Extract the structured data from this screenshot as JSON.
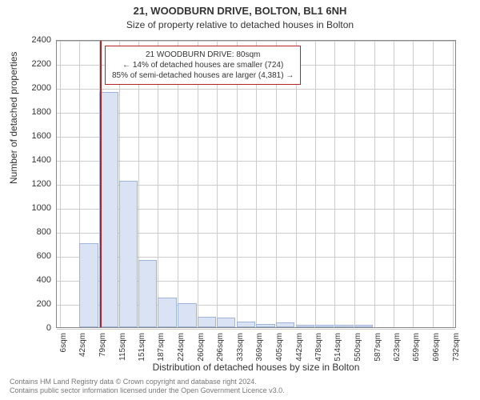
{
  "title": "21, WOODBURN DRIVE, BOLTON, BL1 6NH",
  "subtitle": "Size of property relative to detached houses in Bolton",
  "ylabel": "Number of detached properties",
  "xlabel": "Distribution of detached houses by size in Bolton",
  "footer_line1": "Contains HM Land Registry data © Crown copyright and database right 2024.",
  "footer_line2": "Contains public sector information licensed under the Open Government Licence v3.0.",
  "annotation": {
    "line1": "21 WOODBURN DRIVE: 80sqm",
    "line2": "← 14% of detached houses are smaller (724)",
    "line3": "85% of semi-detached houses are larger (4,381) →"
  },
  "chart": {
    "type": "histogram",
    "bar_fill": "#d9e3f3",
    "bar_stroke": "#9fb4d8",
    "grid_color": "#cccccc",
    "axis_color": "#888888",
    "highlight_color": "#b22222",
    "background": "#ffffff",
    "title_fontsize": 13,
    "label_fontsize": 12,
    "tick_fontsize": 11,
    "ylim": [
      0,
      2400
    ],
    "ytick_step": 200,
    "x_range": [
      0,
      740
    ],
    "x_ticks": [
      6,
      42,
      79,
      115,
      151,
      187,
      224,
      260,
      296,
      333,
      369,
      405,
      442,
      478,
      514,
      550,
      587,
      623,
      659,
      696,
      732
    ],
    "bin_width": 36,
    "highlight_x": 80,
    "bars": [
      {
        "x": 6,
        "y": 0
      },
      {
        "x": 42,
        "y": 700
      },
      {
        "x": 79,
        "y": 1960
      },
      {
        "x": 115,
        "y": 1220
      },
      {
        "x": 151,
        "y": 560
      },
      {
        "x": 187,
        "y": 250
      },
      {
        "x": 224,
        "y": 200
      },
      {
        "x": 260,
        "y": 90
      },
      {
        "x": 296,
        "y": 80
      },
      {
        "x": 333,
        "y": 50
      },
      {
        "x": 369,
        "y": 30
      },
      {
        "x": 405,
        "y": 40
      },
      {
        "x": 442,
        "y": 20
      },
      {
        "x": 478,
        "y": 20
      },
      {
        "x": 514,
        "y": 20
      },
      {
        "x": 550,
        "y": 20
      },
      {
        "x": 587,
        "y": 0
      },
      {
        "x": 623,
        "y": 0
      },
      {
        "x": 659,
        "y": 0
      },
      {
        "x": 696,
        "y": 0
      }
    ]
  }
}
